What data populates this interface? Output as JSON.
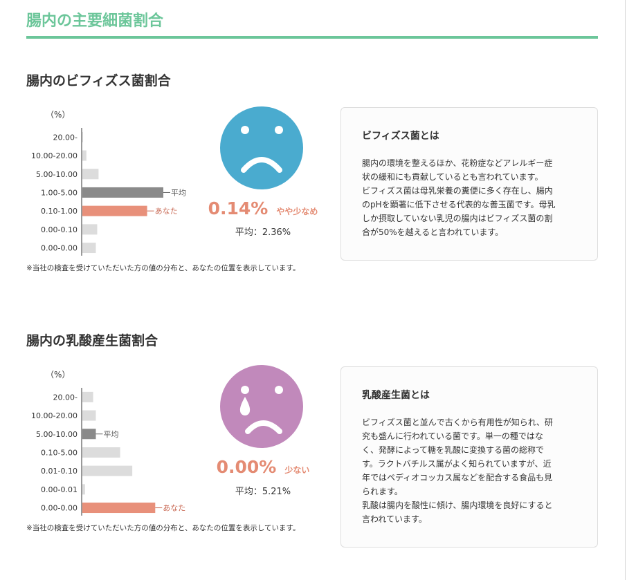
{
  "page_title": "腸内の主要細菌割合",
  "sections": [
    {
      "title": "腸内のビフィズス菌割合",
      "chart_data": {
        "type": "bar",
        "orientation": "horizontal",
        "unit_label": "（%）",
        "categories": [
          "20.00-",
          "10.00-20.00",
          "5.00-10.00",
          "1.00-5.00",
          "0.10-1.00",
          "0.00-0.10",
          "0.00-0.00"
        ],
        "values": [
          0.5,
          3,
          12,
          60,
          48,
          11,
          10
        ],
        "highlight": [
          {
            "index": 3,
            "label": "平均",
            "color": "#8a8a8a"
          },
          {
            "index": 4,
            "label": "あなた",
            "color": "#e8907a"
          }
        ],
        "bar_color": "#dcdcdc"
      },
      "note": "※当社の検査を受けていただいた方の値の分布と、あなたの位置を表示しています。",
      "face": {
        "icon": "sad-face-icon",
        "color": "#4aabcf",
        "tear": false
      },
      "result_value": "0.14%",
      "result_level": "やや少なめ",
      "average": "平均：2.36%",
      "info_title": "ビフィズス菌とは",
      "info_body": "腸内の環境を整えるほか、花粉症などアレルギー症\n状の緩和にも貢献しているとも言われています。\nビフィズス菌は母乳栄養の糞便に多く存在し、腸内\nのpHを顕著に低下させる代表的な善玉菌です。母乳\nしか摂取していない乳児の腸内はビフィズス菌の割\n合が50%を越えると言われています。"
    },
    {
      "title": "腸内の乳酸産生菌割合",
      "chart_data": {
        "type": "bar",
        "orientation": "horizontal",
        "unit_label": "（%）",
        "categories": [
          "20.00-",
          "10.00-20.00",
          "5.00-10.00",
          "0.10-5.00",
          "0.01-0.10",
          "0.00-0.01",
          "0.00-0.00"
        ],
        "values": [
          8,
          10,
          10,
          28,
          37,
          2,
          54
        ],
        "highlight": [
          {
            "index": 2,
            "label": "平均",
            "color": "#8a8a8a"
          },
          {
            "index": 6,
            "label": "あなた",
            "color": "#e8907a"
          }
        ],
        "bar_color": "#dcdcdc"
      },
      "note": "※当社の検査を受けていただいた方の値の分布と、あなたの位置を表示しています。",
      "face": {
        "icon": "crying-face-icon",
        "color": "#c189bb",
        "tear": true
      },
      "result_value": "0.00%",
      "result_level": "少ない",
      "average": "平均：5.21%",
      "info_title": "乳酸産生菌とは",
      "info_body": "ビフィズス菌と並んで古くから有用性が知られ、研\n究も盛んに行われている菌です。単一の種ではな\nく、発酵によって糖を乳酸に変換する菌の総称で\nす。ラクトバチルス属がよく知られていますが、近\n年ではペディオコッカス属などを配合する食品も見\nられます。\n乳酸は腸内を酸性に傾け、腸内環境を良好にすると\n言われています。"
    }
  ]
}
